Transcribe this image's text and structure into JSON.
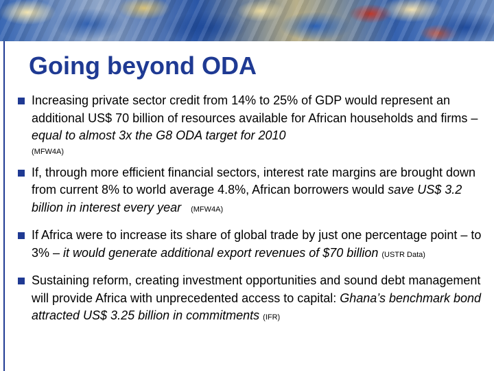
{
  "slide": {
    "title": "Going beyond ODA",
    "bullets": [
      {
        "text": "Increasing private sector credit from 14% to 25% of GDP would represent an additional US$ 70 billion of resources available for African households and firms – ",
        "emphasis": "equal to almost 3x the G8 ODA target for 2010",
        "source": "(MFW4A)"
      },
      {
        "text": "If, through more efficient financial sectors, interest rate margins are brought down from current 8% to world average 4.8%, African borrowers would ",
        "emphasis": "save US$ 3.2 billion in interest every year",
        "source": "(MFW4A)"
      },
      {
        "text": "If Africa were to increase its share of global trade by just one percentage point – to 3% – ",
        "emphasis": "it would generate additional export revenues of $70 billion",
        "source": "(USTR Data)"
      },
      {
        "text": "Sustaining reform, creating investment opportunities and sound debt management will provide Africa with unprecedented access to capital: ",
        "emphasis": "Ghana’s benchmark bond attracted US$ 3.25 billion in commitments",
        "source": "(IFR)"
      }
    ]
  },
  "theme": {
    "title_color": "#1f3a93",
    "bullet_color": "#1f3a93",
    "text_color": "#000000"
  },
  "icons": {
    "bullet": "square-bullet-icon",
    "banner": "painted-artwork-banner"
  }
}
